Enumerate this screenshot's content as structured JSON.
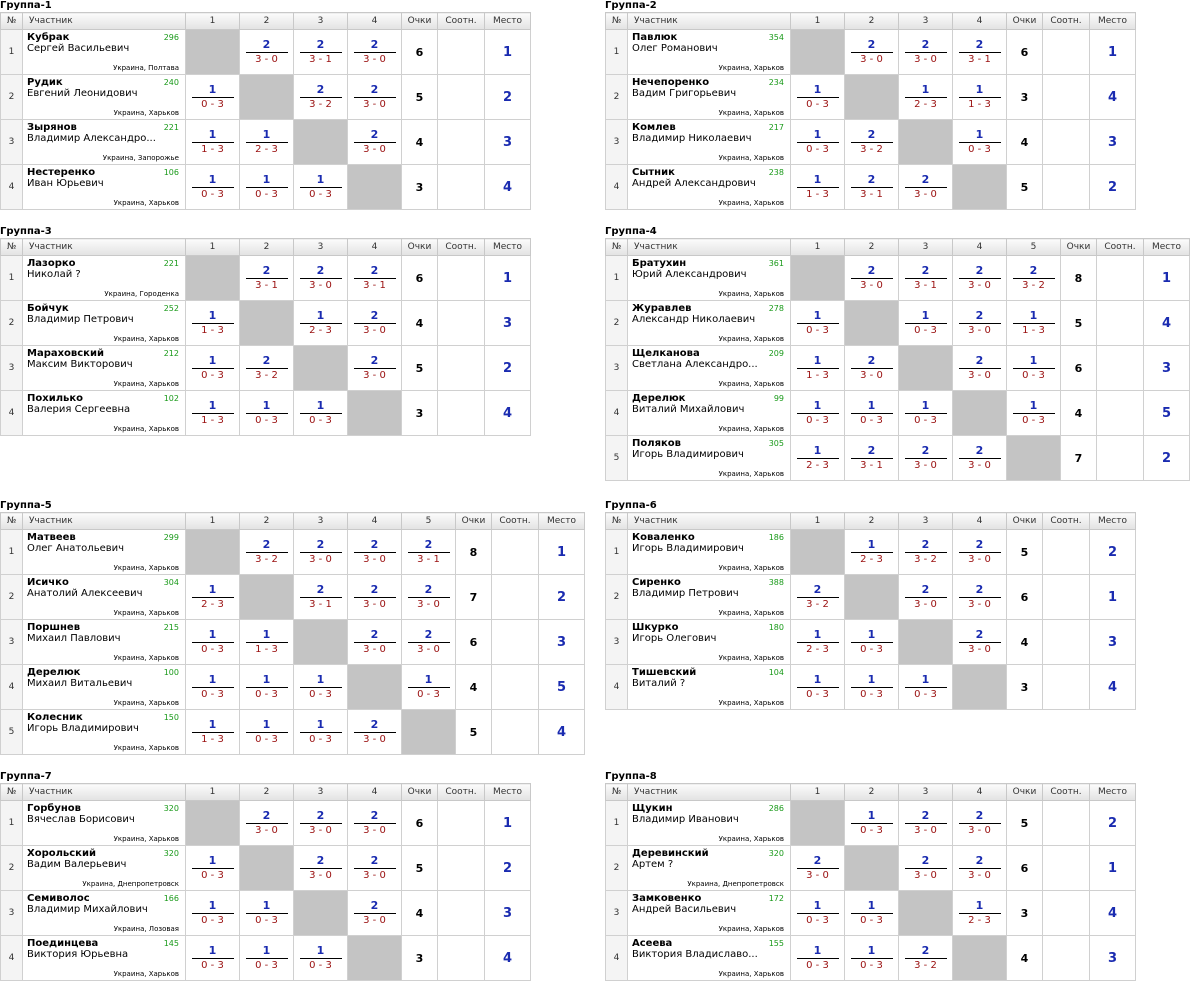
{
  "headers": {
    "no": "№",
    "participant": "Участник",
    "points": "Очки",
    "ratio": "Соотн.",
    "place": "Место"
  },
  "groups": [
    {
      "title": "Группа-1",
      "players": [
        {
          "num": "1",
          "name": "Кубрак",
          "full": "Сергей Васильевич",
          "rating": "296",
          "loc": "Украина, Полтава",
          "results": [
            null,
            {
              "w": "2",
              "s": "3 - 0"
            },
            {
              "w": "2",
              "s": "3 - 1"
            },
            {
              "w": "2",
              "s": "3 - 0"
            }
          ],
          "points": "6",
          "place": "1"
        },
        {
          "num": "2",
          "name": "Рудик",
          "full": "Евгений Леонидович",
          "rating": "240",
          "loc": "Украина, Харьков",
          "results": [
            {
              "w": "1",
              "s": "0 - 3"
            },
            null,
            {
              "w": "2",
              "s": "3 - 2"
            },
            {
              "w": "2",
              "s": "3 - 0"
            }
          ],
          "points": "5",
          "place": "2"
        },
        {
          "num": "3",
          "name": "Зырянов",
          "full": "Владимир Александро...",
          "rating": "221",
          "loc": "Украина, Запорожье",
          "results": [
            {
              "w": "1",
              "s": "1 - 3"
            },
            {
              "w": "1",
              "s": "2 - 3"
            },
            null,
            {
              "w": "2",
              "s": "3 - 0"
            }
          ],
          "points": "4",
          "place": "3"
        },
        {
          "num": "4",
          "name": "Нестеренко",
          "full": "Иван Юрьевич",
          "rating": "106",
          "loc": "Украина, Харьков",
          "results": [
            {
              "w": "1",
              "s": "0 - 3"
            },
            {
              "w": "1",
              "s": "0 - 3"
            },
            {
              "w": "1",
              "s": "0 - 3"
            },
            null
          ],
          "points": "3",
          "place": "4"
        }
      ]
    },
    {
      "title": "Группа-2",
      "players": [
        {
          "num": "1",
          "name": "Павлюк",
          "full": "Олег Романович",
          "rating": "354",
          "loc": "Украина, Харьков",
          "results": [
            null,
            {
              "w": "2",
              "s": "3 - 0"
            },
            {
              "w": "2",
              "s": "3 - 0"
            },
            {
              "w": "2",
              "s": "3 - 1"
            }
          ],
          "points": "6",
          "place": "1"
        },
        {
          "num": "2",
          "name": "Нечепоренко",
          "full": "Вадим Григорьевич",
          "rating": "234",
          "loc": "Украина, Харьков",
          "results": [
            {
              "w": "1",
              "s": "0 - 3"
            },
            null,
            {
              "w": "1",
              "s": "2 - 3"
            },
            {
              "w": "1",
              "s": "1 - 3"
            }
          ],
          "points": "3",
          "place": "4"
        },
        {
          "num": "3",
          "name": "Комлев",
          "full": "Владимир Николаевич",
          "rating": "217",
          "loc": "Украина, Харьков",
          "results": [
            {
              "w": "1",
              "s": "0 - 3"
            },
            {
              "w": "2",
              "s": "3 - 2"
            },
            null,
            {
              "w": "1",
              "s": "0 - 3"
            }
          ],
          "points": "4",
          "place": "3"
        },
        {
          "num": "4",
          "name": "Сытник",
          "full": "Андрей Александрович",
          "rating": "238",
          "loc": "Украина, Харьков",
          "results": [
            {
              "w": "1",
              "s": "1 - 3"
            },
            {
              "w": "2",
              "s": "3 - 1"
            },
            {
              "w": "2",
              "s": "3 - 0"
            },
            null
          ],
          "points": "5",
          "place": "2"
        }
      ]
    },
    {
      "title": "Группа-3",
      "players": [
        {
          "num": "1",
          "name": "Лазорко",
          "full": "Николай ?",
          "rating": "221",
          "loc": "Украина, Городенка",
          "results": [
            null,
            {
              "w": "2",
              "s": "3 - 1"
            },
            {
              "w": "2",
              "s": "3 - 0"
            },
            {
              "w": "2",
              "s": "3 - 1"
            }
          ],
          "points": "6",
          "place": "1"
        },
        {
          "num": "2",
          "name": "Бойчук",
          "full": "Владимир Петрович",
          "rating": "252",
          "loc": "Украина, Харьков",
          "results": [
            {
              "w": "1",
              "s": "1 - 3"
            },
            null,
            {
              "w": "1",
              "s": "2 - 3"
            },
            {
              "w": "2",
              "s": "3 - 0"
            }
          ],
          "points": "4",
          "place": "3"
        },
        {
          "num": "3",
          "name": "Мараховский",
          "full": "Максим Викторович",
          "rating": "212",
          "loc": "Украина, Харьков",
          "results": [
            {
              "w": "1",
              "s": "0 - 3"
            },
            {
              "w": "2",
              "s": "3 - 2"
            },
            null,
            {
              "w": "2",
              "s": "3 - 0"
            }
          ],
          "points": "5",
          "place": "2"
        },
        {
          "num": "4",
          "name": "Похилько",
          "full": "Валерия Сергеевна",
          "rating": "102",
          "loc": "Украина, Харьков",
          "results": [
            {
              "w": "1",
              "s": "1 - 3"
            },
            {
              "w": "1",
              "s": "0 - 3"
            },
            {
              "w": "1",
              "s": "0 - 3"
            },
            null
          ],
          "points": "3",
          "place": "4"
        }
      ]
    },
    {
      "title": "Группа-4",
      "players": [
        {
          "num": "1",
          "name": "Братухин",
          "full": "Юрий Александрович",
          "rating": "361",
          "loc": "Украина, Харьков",
          "results": [
            null,
            {
              "w": "2",
              "s": "3 - 0"
            },
            {
              "w": "2",
              "s": "3 - 1"
            },
            {
              "w": "2",
              "s": "3 - 0"
            },
            {
              "w": "2",
              "s": "3 - 2"
            }
          ],
          "points": "8",
          "place": "1"
        },
        {
          "num": "2",
          "name": "Журавлев",
          "full": "Александр Николаевич",
          "rating": "278",
          "loc": "Украина, Харьков",
          "results": [
            {
              "w": "1",
              "s": "0 - 3"
            },
            null,
            {
              "w": "1",
              "s": "0 - 3"
            },
            {
              "w": "2",
              "s": "3 - 0"
            },
            {
              "w": "1",
              "s": "1 - 3"
            }
          ],
          "points": "5",
          "place": "4"
        },
        {
          "num": "3",
          "name": "Щелканова",
          "full": "Светлана Александро...",
          "rating": "209",
          "loc": "Украина, Харьков",
          "results": [
            {
              "w": "1",
              "s": "1 - 3"
            },
            {
              "w": "2",
              "s": "3 - 0"
            },
            null,
            {
              "w": "2",
              "s": "3 - 0"
            },
            {
              "w": "1",
              "s": "0 - 3"
            }
          ],
          "points": "6",
          "place": "3"
        },
        {
          "num": "4",
          "name": "Дерелюк",
          "full": "Виталий Михайлович",
          "rating": "99",
          "loc": "Украина, Харьков",
          "results": [
            {
              "w": "1",
              "s": "0 - 3"
            },
            {
              "w": "1",
              "s": "0 - 3"
            },
            {
              "w": "1",
              "s": "0 - 3"
            },
            null,
            {
              "w": "1",
              "s": "0 - 3"
            }
          ],
          "points": "4",
          "place": "5"
        },
        {
          "num": "5",
          "name": "Поляков",
          "full": "Игорь Владимирович",
          "rating": "305",
          "loc": "Украина, Харьков",
          "results": [
            {
              "w": "1",
              "s": "2 - 3"
            },
            {
              "w": "2",
              "s": "3 - 1"
            },
            {
              "w": "2",
              "s": "3 - 0"
            },
            {
              "w": "2",
              "s": "3 - 0"
            },
            null
          ],
          "points": "7",
          "place": "2"
        }
      ]
    },
    {
      "title": "Группа-5",
      "players": [
        {
          "num": "1",
          "name": "Матвеев",
          "full": "Олег Анатольевич",
          "rating": "299",
          "loc": "Украина, Харьков",
          "results": [
            null,
            {
              "w": "2",
              "s": "3 - 2"
            },
            {
              "w": "2",
              "s": "3 - 0"
            },
            {
              "w": "2",
              "s": "3 - 0"
            },
            {
              "w": "2",
              "s": "3 - 1"
            }
          ],
          "points": "8",
          "place": "1"
        },
        {
          "num": "2",
          "name": "Исичко",
          "full": "Анатолий Алексеевич",
          "rating": "304",
          "loc": "Украина, Харьков",
          "results": [
            {
              "w": "1",
              "s": "2 - 3"
            },
            null,
            {
              "w": "2",
              "s": "3 - 1"
            },
            {
              "w": "2",
              "s": "3 - 0"
            },
            {
              "w": "2",
              "s": "3 - 0"
            }
          ],
          "points": "7",
          "place": "2"
        },
        {
          "num": "3",
          "name": "Поршнев",
          "full": "Михаил Павлович",
          "rating": "215",
          "loc": "Украина, Харьков",
          "results": [
            {
              "w": "1",
              "s": "0 - 3"
            },
            {
              "w": "1",
              "s": "1 - 3"
            },
            null,
            {
              "w": "2",
              "s": "3 - 0"
            },
            {
              "w": "2",
              "s": "3 - 0"
            }
          ],
          "points": "6",
          "place": "3"
        },
        {
          "num": "4",
          "name": "Дерелюк",
          "full": "Михаил Витальевич",
          "rating": "100",
          "loc": "Украина, Харьков",
          "results": [
            {
              "w": "1",
              "s": "0 - 3"
            },
            {
              "w": "1",
              "s": "0 - 3"
            },
            {
              "w": "1",
              "s": "0 - 3"
            },
            null,
            {
              "w": "1",
              "s": "0 - 3"
            }
          ],
          "points": "4",
          "place": "5"
        },
        {
          "num": "5",
          "name": "Колесник",
          "full": "Игорь Владимирович",
          "rating": "150",
          "loc": "Украина, Харьков",
          "results": [
            {
              "w": "1",
              "s": "1 - 3"
            },
            {
              "w": "1",
              "s": "0 - 3"
            },
            {
              "w": "1",
              "s": "0 - 3"
            },
            {
              "w": "2",
              "s": "3 - 0"
            },
            null
          ],
          "points": "5",
          "place": "4"
        }
      ]
    },
    {
      "title": "Группа-6",
      "players": [
        {
          "num": "1",
          "name": "Коваленко",
          "full": "Игорь Владимирович",
          "rating": "186",
          "loc": "Украина, Харьков",
          "results": [
            null,
            {
              "w": "1",
              "s": "2 - 3"
            },
            {
              "w": "2",
              "s": "3 - 2"
            },
            {
              "w": "2",
              "s": "3 - 0"
            }
          ],
          "points": "5",
          "place": "2"
        },
        {
          "num": "2",
          "name": "Сиренко",
          "full": "Владимир Петрович",
          "rating": "388",
          "loc": "Украина, Харьков",
          "results": [
            {
              "w": "2",
              "s": "3 - 2"
            },
            null,
            {
              "w": "2",
              "s": "3 - 0"
            },
            {
              "w": "2",
              "s": "3 - 0"
            }
          ],
          "points": "6",
          "place": "1"
        },
        {
          "num": "3",
          "name": "Шкурко",
          "full": "Игорь Олегович",
          "rating": "180",
          "loc": "Украина, Харьков",
          "results": [
            {
              "w": "1",
              "s": "2 - 3"
            },
            {
              "w": "1",
              "s": "0 - 3"
            },
            null,
            {
              "w": "2",
              "s": "3 - 0"
            }
          ],
          "points": "4",
          "place": "3"
        },
        {
          "num": "4",
          "name": "Тишевский",
          "full": "Виталий ?",
          "rating": "104",
          "loc": "Украина, Харьков",
          "results": [
            {
              "w": "1",
              "s": "0 - 3"
            },
            {
              "w": "1",
              "s": "0 - 3"
            },
            {
              "w": "1",
              "s": "0 - 3"
            },
            null
          ],
          "points": "3",
          "place": "4"
        }
      ]
    },
    {
      "title": "Группа-7",
      "players": [
        {
          "num": "1",
          "name": "Горбунов",
          "full": "Вячеслав Борисович",
          "rating": "320",
          "loc": "Украина, Харьков",
          "results": [
            null,
            {
              "w": "2",
              "s": "3 - 0"
            },
            {
              "w": "2",
              "s": "3 - 0"
            },
            {
              "w": "2",
              "s": "3 - 0"
            }
          ],
          "points": "6",
          "place": "1"
        },
        {
          "num": "2",
          "name": "Хорольский",
          "full": "Вадим Валерьевич",
          "rating": "320",
          "loc": "Украина, Днепропетровск",
          "results": [
            {
              "w": "1",
              "s": "0 - 3"
            },
            null,
            {
              "w": "2",
              "s": "3 - 0"
            },
            {
              "w": "2",
              "s": "3 - 0"
            }
          ],
          "points": "5",
          "place": "2"
        },
        {
          "num": "3",
          "name": "Семиволос",
          "full": "Владимир Михайлович",
          "rating": "166",
          "loc": "Украина, Лозовая",
          "results": [
            {
              "w": "1",
              "s": "0 - 3"
            },
            {
              "w": "1",
              "s": "0 - 3"
            },
            null,
            {
              "w": "2",
              "s": "3 - 0"
            }
          ],
          "points": "4",
          "place": "3"
        },
        {
          "num": "4",
          "name": "Поединцева",
          "full": "Виктория Юрьевна",
          "rating": "145",
          "loc": "Украина, Харьков",
          "results": [
            {
              "w": "1",
              "s": "0 - 3"
            },
            {
              "w": "1",
              "s": "0 - 3"
            },
            {
              "w": "1",
              "s": "0 - 3"
            },
            null
          ],
          "points": "3",
          "place": "4"
        }
      ]
    },
    {
      "title": "Группа-8",
      "players": [
        {
          "num": "1",
          "name": "Щукин",
          "full": "Владимир Иванович",
          "rating": "286",
          "loc": "Украина, Харьков",
          "results": [
            null,
            {
              "w": "1",
              "s": "0 - 3"
            },
            {
              "w": "2",
              "s": "3 - 0"
            },
            {
              "w": "2",
              "s": "3 - 0"
            }
          ],
          "points": "5",
          "place": "2"
        },
        {
          "num": "2",
          "name": "Деревинский",
          "full": "Артем ?",
          "rating": "320",
          "loc": "Украина, Днепропетровск",
          "results": [
            {
              "w": "2",
              "s": "3 - 0"
            },
            null,
            {
              "w": "2",
              "s": "3 - 0"
            },
            {
              "w": "2",
              "s": "3 - 0"
            }
          ],
          "points": "6",
          "place": "1"
        },
        {
          "num": "3",
          "name": "Замковенко",
          "full": "Андрей Васильевич",
          "rating": "172",
          "loc": "Украина, Харьков",
          "results": [
            {
              "w": "1",
              "s": "0 - 3"
            },
            {
              "w": "1",
              "s": "0 - 3"
            },
            null,
            {
              "w": "1",
              "s": "2 - 3"
            }
          ],
          "points": "3",
          "place": "4"
        },
        {
          "num": "4",
          "name": "Асеева",
          "full": "Виктория Владиславо...",
          "rating": "155",
          "loc": "Украина, Харьков",
          "results": [
            {
              "w": "1",
              "s": "0 - 3"
            },
            {
              "w": "1",
              "s": "0 - 3"
            },
            {
              "w": "2",
              "s": "3 - 2"
            },
            null
          ],
          "points": "4",
          "place": "3"
        }
      ]
    }
  ]
}
